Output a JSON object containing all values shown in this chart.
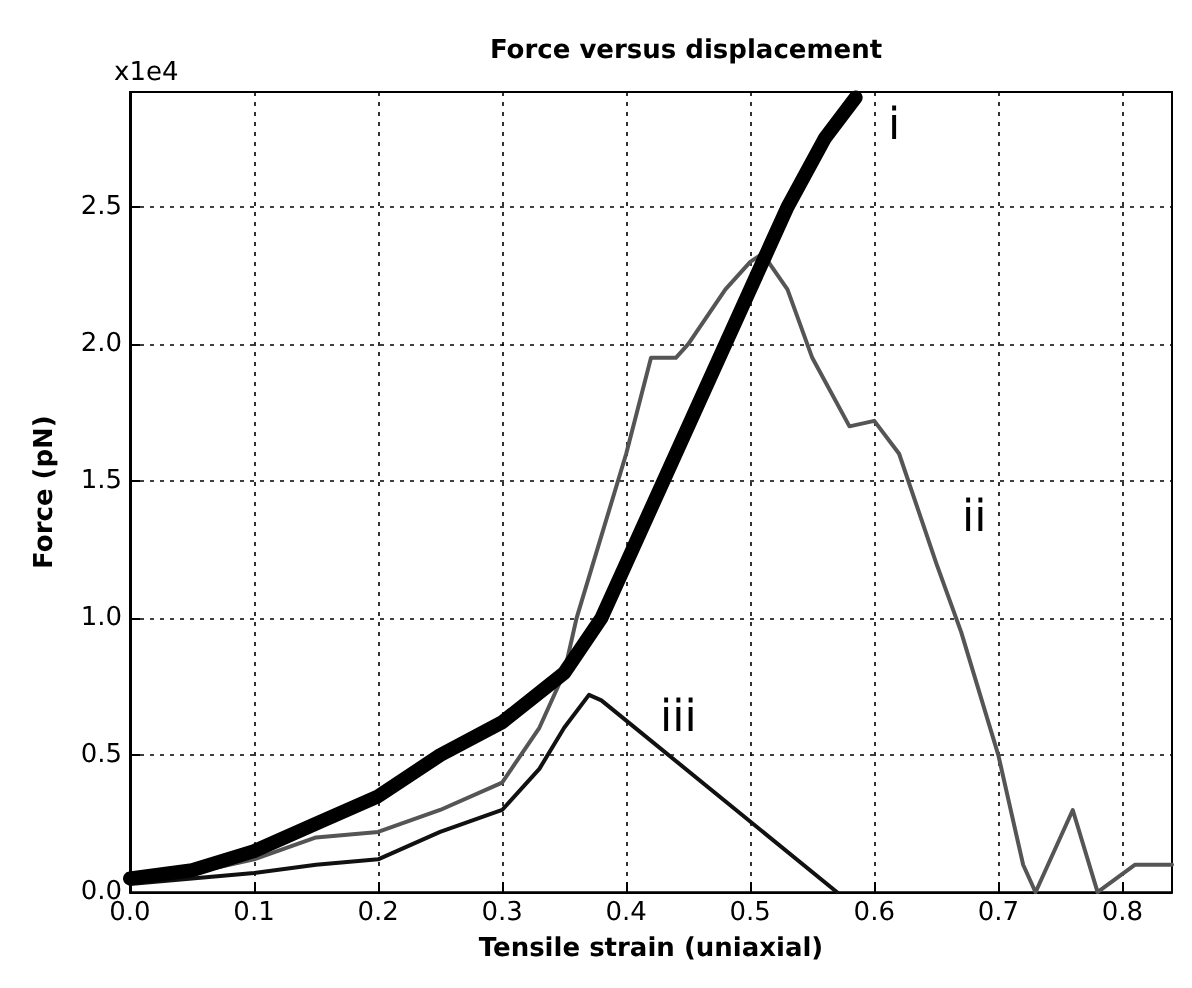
{
  "chart_data": {
    "type": "line",
    "title": "Force versus displacement",
    "xlabel": "Tensile strain (uniaxial)",
    "ylabel": "Force (pN)",
    "xlim": [
      0,
      0.84
    ],
    "ylim": [
      0,
      2.92
    ],
    "xticks": [
      {
        "value": 0,
        "label": "0.0"
      },
      0.1,
      0.2,
      0.3,
      0.4,
      0.5,
      0.6,
      0.7,
      0.8
    ],
    "yticks": [
      {
        "value": 0,
        "label": "0.0"
      },
      0.5,
      {
        "value": 1,
        "label": "1.0"
      },
      1.5,
      {
        "value": 2,
        "label": "2.0"
      },
      2.5
    ],
    "grid": true,
    "marker": "none",
    "line_style": "solid",
    "series": [
      {
        "color": "#000000",
        "x": [
          0,
          0.05,
          0.1,
          0.15,
          0.2,
          0.25,
          0.3,
          0.35,
          0.38,
          0.4,
          0.43,
          0.46,
          0.5,
          0.53,
          0.56,
          0.585
        ],
        "values": [
          0.05,
          0.08,
          0.15,
          0.25,
          0.35,
          0.5,
          0.62,
          0.8,
          1.0,
          1.2,
          1.5,
          1.8,
          2.2,
          2.5,
          2.75,
          2.9
        ]
      },
      {
        "color": "#555555",
        "x": [
          0,
          0.05,
          0.1,
          0.15,
          0.2,
          0.25,
          0.3,
          0.33,
          0.35,
          0.36,
          0.38,
          0.4,
          0.42,
          0.44,
          0.45,
          0.48,
          0.5,
          0.51,
          0.53,
          0.55,
          0.58,
          0.6,
          0.62,
          0.65,
          0.67,
          0.7,
          0.72,
          0.73,
          0.76,
          0.78,
          0.81,
          0.84
        ],
        "values": [
          0.05,
          0.07,
          0.12,
          0.2,
          0.22,
          0.3,
          0.4,
          0.6,
          0.8,
          1.0,
          1.3,
          1.6,
          1.95,
          1.95,
          2.0,
          2.2,
          2.3,
          2.33,
          2.2,
          1.95,
          1.7,
          1.72,
          1.6,
          1.2,
          0.95,
          0.5,
          0.1,
          0,
          0.3,
          0,
          0.1,
          0.1
        ]
      },
      {
        "color": "#111111",
        "x": [
          0,
          0.05,
          0.1,
          0.15,
          0.2,
          0.25,
          0.3,
          0.33,
          0.35,
          0.37,
          0.38,
          0.57
        ],
        "values": [
          0.03,
          0.05,
          0.07,
          0.1,
          0.12,
          0.22,
          0.3,
          0.45,
          0.6,
          0.72,
          0.7,
          0
        ]
      }
    ],
    "annotations": [
      "x1e4",
      "i",
      "ii",
      "iii"
    ]
  }
}
